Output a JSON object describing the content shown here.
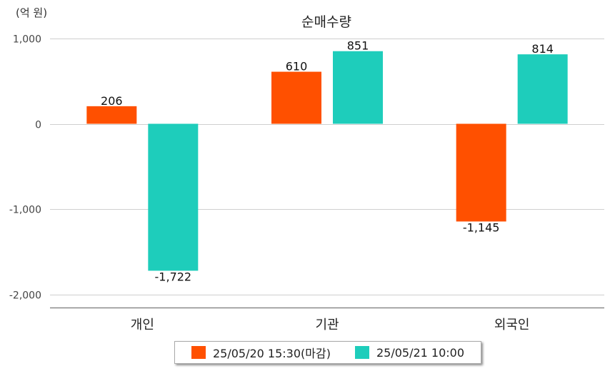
{
  "unit_label": "(억 원)",
  "chart_data": {
    "type": "bar",
    "title": "순매수량",
    "categories": [
      "개인",
      "기관",
      "외국인"
    ],
    "series": [
      {
        "name": "25/05/20 15:30(마감)",
        "color": "#ff5000",
        "values": [
          206,
          610,
          -1145
        ],
        "labels": [
          "206",
          "610",
          "-1,145"
        ]
      },
      {
        "name": "25/05/21 10:00",
        "color": "#1ecdbb",
        "values": [
          -1722,
          851,
          814
        ],
        "labels": [
          "-1,722",
          "851",
          "814"
        ]
      }
    ],
    "yticks": [
      1000,
      0,
      -1000,
      -2000
    ],
    "ytick_labels": [
      "1,000",
      "0",
      "-1,000",
      "-2,000"
    ],
    "ylim": [
      -2150,
      1010
    ],
    "grid": true,
    "legend_position": "bottom"
  }
}
